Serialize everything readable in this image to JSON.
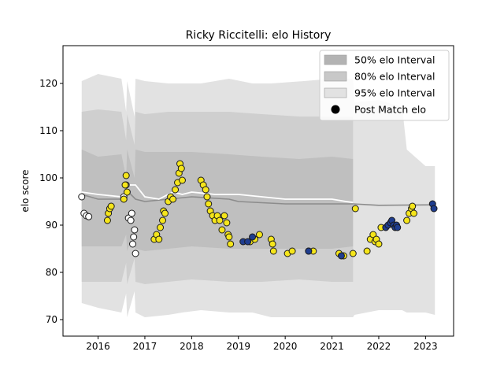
{
  "chart_data": {
    "type": "scatter",
    "title": "Ricky Riccitelli: elo History",
    "xlabel": "",
    "ylabel": "elo score",
    "xlim": [
      2015.25,
      2023.6
    ],
    "ylim": [
      66.5,
      128
    ],
    "x_ticks": [
      2016,
      2017,
      2018,
      2019,
      2020,
      2021,
      2022,
      2023
    ],
    "x_tick_labels": [
      "2016",
      "2017",
      "2018",
      "2019",
      "2020",
      "2021",
      "2022",
      "2023"
    ],
    "y_ticks": [
      70,
      80,
      90,
      100,
      110,
      120
    ],
    "y_tick_labels": [
      "70",
      "80",
      "90",
      "100",
      "110",
      "120"
    ],
    "grid": false,
    "legend_position": "top-right",
    "legend": [
      {
        "label": "50% elo Interval",
        "kind": "band",
        "color": "#b3b3b3"
      },
      {
        "label": "80% elo Interval",
        "kind": "band",
        "color": "#c8c8c8"
      },
      {
        "label": "95% elo Interval",
        "kind": "band",
        "color": "#e2e2e2"
      },
      {
        "label": "Post Match elo",
        "kind": "marker",
        "color": "#000000"
      }
    ],
    "colors": {
      "band95": "#e2e2e2",
      "band80": "#cfcfcf",
      "band50": "#bfbfbf",
      "mean_line": "#8c8c8c",
      "white_line": "#ffffff",
      "point_white": "#ffffff",
      "point_yellow": "#f5e51b",
      "point_navy": "#1f3d8f",
      "point_edge": "#1a1a1a"
    },
    "series": [
      {
        "kind": "band95",
        "x": [
          2015.65,
          2016.0,
          2016.5,
          2016.6,
          2016.62,
          2016.78,
          2016.8,
          2017.0,
          2017.5,
          2017.8,
          2018.2,
          2018.8,
          2019.3,
          2019.7,
          2020.4,
          2021.0,
          2021.45,
          2021.48,
          2022.0,
          2022.5,
          2022.6,
          2023.0,
          2023.2
        ],
        "lo": [
          73.5,
          72.5,
          71.5,
          75.5,
          70.5,
          76,
          71.5,
          70.5,
          71,
          71.5,
          72,
          71.5,
          71.5,
          70.5,
          70.5,
          70.5,
          70.5,
          71,
          72,
          72,
          71.5,
          71.5,
          71
        ],
        "hi": [
          120.5,
          122,
          121,
          114,
          120.5,
          113,
          121,
          120.5,
          120,
          120,
          120,
          121,
          120,
          120,
          120.5,
          121,
          121,
          116,
          116.5,
          115,
          106,
          102.5,
          102.5
        ]
      },
      {
        "kind": "band80",
        "x": [
          2015.65,
          2016.0,
          2016.5,
          2016.6,
          2016.62,
          2016.78,
          2016.8,
          2017.0,
          2017.5,
          2018.0,
          2018.8,
          2019.5,
          2020.3,
          2021.0,
          2021.45
        ],
        "lo": [
          78,
          78,
          78,
          82,
          77.5,
          83,
          78,
          77.5,
          78,
          78.5,
          78,
          78,
          78.5,
          78,
          78
        ],
        "hi": [
          114,
          114.5,
          114,
          108,
          113.5,
          107,
          114,
          113.5,
          114,
          114,
          114,
          113.5,
          113,
          113,
          113
        ]
      },
      {
        "kind": "band50",
        "x": [
          2015.65,
          2016.0,
          2016.5,
          2016.6,
          2016.62,
          2016.78,
          2016.8,
          2017.0,
          2017.5,
          2018.0,
          2018.8,
          2019.5,
          2020.3,
          2021.0,
          2021.45
        ],
        "lo": [
          85.5,
          85.5,
          85.5,
          88,
          84.5,
          89,
          85,
          84.5,
          85,
          85.5,
          85,
          85,
          85,
          85,
          85.5
        ],
        "hi": [
          106,
          104.5,
          105,
          100,
          106,
          100,
          106,
          105.5,
          105.5,
          105.5,
          105,
          104.5,
          104,
          104.5,
          104
        ]
      },
      {
        "kind": "mean_line",
        "x": [
          2015.65,
          2016.0,
          2016.5,
          2016.65,
          2016.7,
          2016.8,
          2017.0,
          2017.5,
          2018.0,
          2018.8,
          2019.0,
          2020.0,
          2021.0,
          2021.45,
          2022.0,
          2023.2
        ],
        "y": [
          96.5,
          95.5,
          95.5,
          97,
          96.5,
          95.5,
          95,
          95.5,
          96,
          95.5,
          95,
          94.5,
          94.5,
          94.5,
          94.2,
          94.3
        ]
      },
      {
        "kind": "white_line",
        "x": [
          2015.65,
          2016.0,
          2016.5,
          2016.6,
          2016.65,
          2016.8,
          2017.0,
          2017.3,
          2017.6,
          2017.8,
          2018.0,
          2018.5,
          2019.0,
          2019.5,
          2020.0,
          2021.0,
          2021.3,
          2021.45
        ],
        "y": [
          97,
          96.5,
          96,
          96,
          98.5,
          98.5,
          96,
          95.5,
          97,
          96.5,
          97,
          96.5,
          96.5,
          96,
          95.5,
          95.5,
          95,
          94.8
        ]
      },
      {
        "kind": "points_white",
        "x": [
          2015.65,
          2015.7,
          2015.75,
          2015.8,
          2016.55,
          2016.6,
          2016.65,
          2016.7,
          2016.72,
          2016.74,
          2016.76,
          2016.78,
          2016.8
        ],
        "y": [
          96,
          92.5,
          92,
          91.8,
          96,
          98.5,
          91.5,
          91,
          92.5,
          86,
          87.5,
          89,
          84
        ]
      },
      {
        "kind": "points_yellow",
        "x": [
          2016.2,
          2016.22,
          2016.25,
          2016.28,
          2016.55,
          2016.58,
          2016.6,
          2016.62,
          2017.2,
          2017.25,
          2017.3,
          2017.33,
          2017.38,
          2017.4,
          2017.43,
          2017.5,
          2017.55,
          2017.6,
          2017.65,
          2017.7,
          2017.73,
          2017.75,
          2017.78,
          2017.8,
          2018.2,
          2018.25,
          2018.3,
          2018.33,
          2018.36,
          2018.4,
          2018.45,
          2018.5,
          2018.55,
          2018.6,
          2018.65,
          2018.7,
          2018.75,
          2018.78,
          2018.8,
          2018.83,
          2019.25,
          2019.35,
          2019.45,
          2019.7,
          2019.73,
          2019.75,
          2020.05,
          2020.15,
          2020.5,
          2020.6,
          2021.15,
          2021.25,
          2021.45,
          2021.5,
          2021.75,
          2021.82,
          2021.88,
          2021.92,
          2021.95,
          2022.0,
          2022.05,
          2022.6,
          2022.65,
          2022.7,
          2022.72,
          2022.75
        ],
        "y": [
          91,
          92.5,
          93.5,
          94,
          95.5,
          98.5,
          100.5,
          97,
          87,
          88,
          87,
          89.5,
          91,
          93,
          92.5,
          95,
          96,
          95.5,
          97.5,
          99,
          101,
          103,
          102,
          99.5,
          99.5,
          98.5,
          97.5,
          96,
          94.5,
          93,
          92,
          91,
          92,
          91,
          89,
          92,
          90.5,
          88,
          87.5,
          86,
          86.5,
          87,
          88,
          87,
          86,
          84.5,
          84,
          84.5,
          84.5,
          84.5,
          84,
          83.5,
          84,
          93.5,
          84.5,
          87,
          88,
          86.5,
          87,
          86,
          89.5,
          91,
          92.5,
          93.5,
          94,
          92.5
        ]
      },
      {
        "kind": "points_navy",
        "x": [
          2019.1,
          2019.2,
          2019.3,
          2020.5,
          2021.2,
          2022.15,
          2022.2,
          2022.25,
          2022.28,
          2022.32,
          2022.35,
          2022.38,
          2022.4,
          2023.15,
          2023.18
        ],
        "y": [
          86.5,
          86.5,
          87.5,
          84.5,
          83.5,
          89.5,
          90,
          90.5,
          91,
          90,
          89.5,
          90,
          89.5,
          94.5,
          93.5
        ]
      }
    ]
  }
}
